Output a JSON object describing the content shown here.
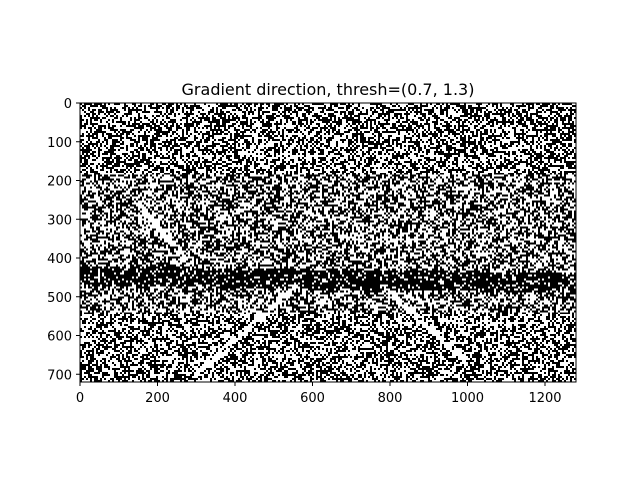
{
  "chart_data": {
    "type": "heatmap",
    "title": "Gradient direction, thresh=(0.7, 1.3)",
    "xlabel": "",
    "ylabel": "",
    "xlim": [
      0,
      1280
    ],
    "ylim": [
      720,
      0
    ],
    "x_ticks": [
      0,
      200,
      400,
      600,
      800,
      1000,
      1200
    ],
    "y_ticks": [
      0,
      100,
      200,
      300,
      400,
      500,
      600,
      700
    ],
    "x_tick_labels": [
      "0",
      "200",
      "400",
      "600",
      "800",
      "1000",
      "1200"
    ],
    "y_tick_labels": [
      "0",
      "100",
      "200",
      "300",
      "400",
      "500",
      "600",
      "700"
    ],
    "image_shape": [
      720,
      1280
    ],
    "binary_values": [
      0,
      1
    ],
    "colormap": {
      "0": "#000000",
      "1": "#ffffff"
    },
    "approx_fraction_white": 0.5,
    "features": [
      {
        "kind": "dark horizontal band",
        "y_range": [
          430,
          480
        ],
        "x_range": [
          0,
          1280
        ]
      },
      {
        "kind": "bright diagonal line",
        "from": [
          300,
          700
        ],
        "to": [
          560,
          470
        ]
      },
      {
        "kind": "bright diagonal line",
        "from": [
          790,
          480
        ],
        "to": [
          990,
          660
        ]
      },
      {
        "kind": "bright diagonal line",
        "from": [
          150,
          260
        ],
        "to": [
          270,
          400
        ]
      }
    ],
    "grid": false,
    "legend": "none"
  }
}
